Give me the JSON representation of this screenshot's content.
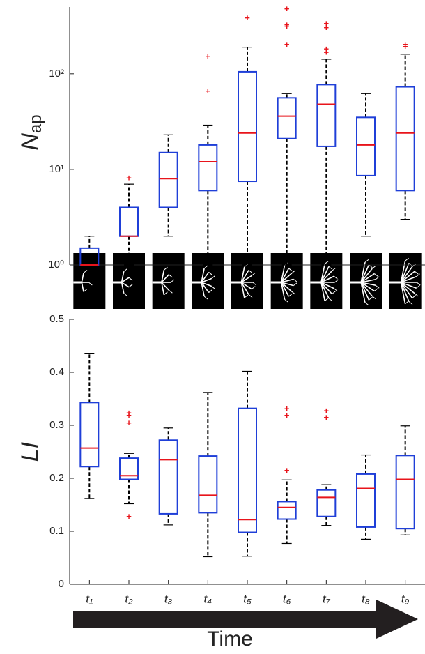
{
  "chart_data": [
    {
      "type": "box",
      "y_label": {
        "symbol": "N",
        "subscript": "ap"
      },
      "log_scale": true,
      "categories": [
        "t₁",
        "t₂",
        "t₃",
        "t₄",
        "t₅",
        "t₆",
        "t₇",
        "t₈",
        "t₉"
      ],
      "whislo": [
        1,
        1,
        2,
        1,
        1,
        1,
        1,
        2,
        3
      ],
      "q1": [
        1,
        2,
        4,
        6,
        7.5,
        21,
        17.4,
        8.6,
        6
      ],
      "med": [
        1,
        2,
        8,
        12,
        24,
        36,
        48,
        18,
        24
      ],
      "q3": [
        1.5,
        4,
        15,
        18,
        105,
        56,
        77,
        35,
        73
      ],
      "whishi": [
        2,
        7,
        23,
        29,
        190,
        62,
        142,
        62,
        160
      ],
      "fliers": [
        [],
        [
          8
        ],
        [],
        [
          150,
          65
        ],
        [
          380
        ],
        [
          470,
          320,
          310,
          200
        ],
        [
          330,
          300,
          180,
          165
        ],
        [],
        [
          200,
          190
        ]
      ],
      "box_color": "#1f3fd8",
      "median_color": "#e8141b",
      "whisker_color": "#000000",
      "ylim": [
        1,
        500
      ],
      "yticks": [
        {
          "value": 1,
          "label": "10⁰"
        },
        {
          "value": 10,
          "label": "10¹"
        },
        {
          "value": 100,
          "label": "10²"
        }
      ]
    },
    {
      "type": "box",
      "y_label": {
        "symbol": "LI",
        "subscript": ""
      },
      "log_scale": false,
      "categories": [
        "t₁",
        "t₂",
        "t₃",
        "t₄",
        "t₅",
        "t₆",
        "t₇",
        "t₈",
        "t₉"
      ],
      "whislo": [
        0.162,
        0.152,
        0.112,
        0.052,
        0.053,
        0.077,
        0.111,
        0.085,
        0.093
      ],
      "q1": [
        0.222,
        0.198,
        0.133,
        0.135,
        0.098,
        0.123,
        0.128,
        0.108,
        0.105
      ],
      "med": [
        0.257,
        0.205,
        0.235,
        0.168,
        0.122,
        0.145,
        0.164,
        0.181,
        0.198
      ],
      "q3": [
        0.343,
        0.238,
        0.272,
        0.242,
        0.332,
        0.156,
        0.178,
        0.208,
        0.243
      ],
      "whishi": [
        0.435,
        0.247,
        0.295,
        0.362,
        0.402,
        0.197,
        0.188,
        0.244,
        0.299
      ],
      "fliers": [
        [],
        [
          0.322,
          0.318,
          0.303,
          0.127
        ],
        [],
        [],
        [],
        [
          0.33,
          0.318,
          0.214
        ],
        [
          0.326,
          0.314
        ],
        [],
        []
      ],
      "box_color": "#1f3fd8",
      "median_color": "#e8141b",
      "whisker_color": "#000000",
      "ylim": [
        0,
        0.5
      ],
      "yticks": [
        0,
        0.1,
        0.2,
        0.3,
        0.4,
        0.5
      ],
      "x_label": "Time"
    }
  ]
}
